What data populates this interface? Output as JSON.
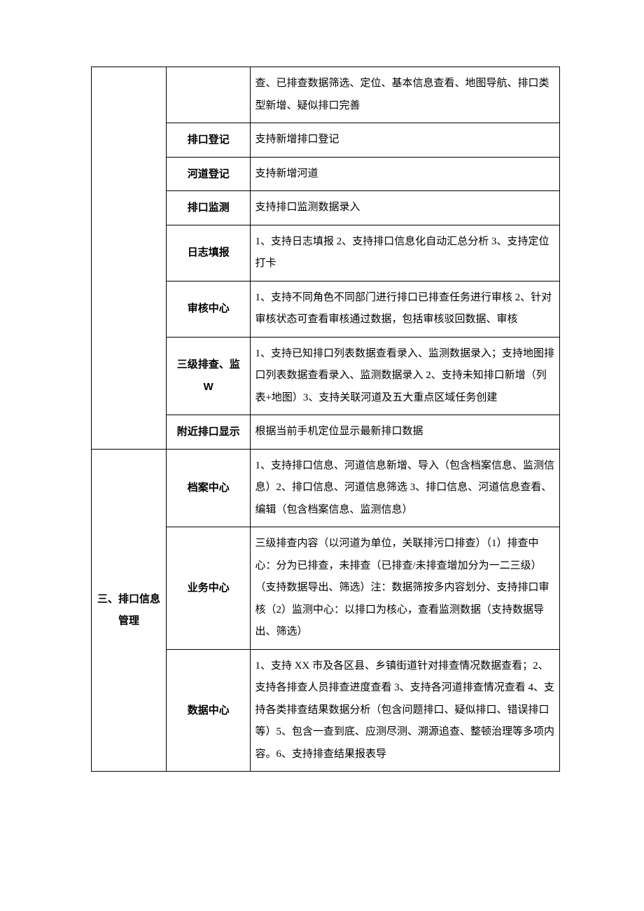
{
  "table": {
    "border_color": "#000000",
    "background_color": "#ffffff",
    "font_size_pt": 11,
    "line_height": 2.1,
    "columns": [
      {
        "width_pct": 16
      },
      {
        "width_pct": 18
      },
      {
        "width_pct": 66
      }
    ],
    "rows": [
      {
        "col1": "",
        "col2": "",
        "col3": "查、已排查数据筛选、定位、基本信息查看、地图导航、排口类型新增、疑似排口完善"
      },
      {
        "col2": "排口登记",
        "col3": "支持新增排口登记"
      },
      {
        "col2": "河道登记",
        "col3": "支持新增河道"
      },
      {
        "col2": "排口监测",
        "col3": "支持排口监测数据录入"
      },
      {
        "col2": "日志填报",
        "col3": "1、支持日志填报 2、支持排口信息化自动汇总分析 3、支持定位打卡"
      },
      {
        "col2": "审核中心",
        "col3": "1、支持不同角色不同部门进行排口已排查任务进行审核 2、针对审核状态可查看审核通过数据，包括审核驳回数据、审核"
      },
      {
        "col2": "三级排查、监 W",
        "col3": "1、支持已知排口列表数据查看录入、监测数据录入；支持地图排口列表数据查看录入、监测数据录入 2、支持未知排口新增（列表+地图）3、支持关联河道及五大重点区域任务创建"
      },
      {
        "col2": "附近排口显示",
        "col3": "根据当前手机定位显示最新排口数据"
      },
      {
        "col1": "三、排口信息管理",
        "col2": "档案中心",
        "col3": "1、支持排口信息、河道信息新增、导入（包含档案信息、监测信息）2、排口信息、河道信息筛选 3、排口信息、河道信息查看、编辑（包含档案信息、监测信息）"
      },
      {
        "col2": "业务中心",
        "col3": "三级排查内容（以河道为单位，关联排污口排查）（1）排查中心：分为已排查，未排查（已排查/未排查增加分为一二三级）（支持数据导出、筛选）注：数据筛按多内容划分、支持排口审核（2）监测中心：以排口为核心，查看监测数据（支持数据导出、筛选）"
      },
      {
        "col2": "数据中心",
        "col3": "1、支持 XX 市及各区县、乡镇街道针对排查情况数据查看；2、支持各排查人员排查进度查看 3、支持各河道排查情况查看 4、支持各类排查结果数据分析（包含问题排口、疑似排口、错误排口等）5、包含一查到底、应测尽测、溯源追查、整顿治理等多项内容。6、支持排查结果报表导"
      }
    ]
  }
}
